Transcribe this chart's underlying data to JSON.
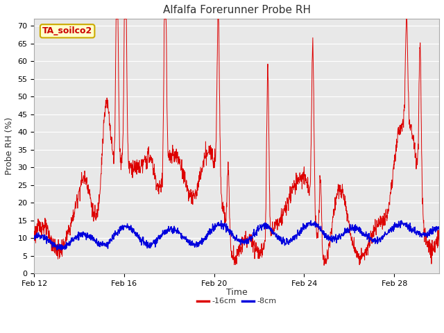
{
  "title": "Alfalfa Forerunner Probe RH",
  "ylabel": "Probe RH (%)",
  "xlabel": "Time",
  "ylim": [
    0,
    72
  ],
  "yticks": [
    0,
    5,
    10,
    15,
    20,
    25,
    30,
    35,
    40,
    45,
    50,
    55,
    60,
    65,
    70
  ],
  "legend_label": "TA_soilco2",
  "series": [
    {
      "label": "-16cm",
      "color": "#dd0000"
    },
    {
      "label": "-8cm",
      "color": "#0000dd"
    }
  ],
  "xtick_labels": [
    "Feb 12",
    "Feb 16",
    "Feb 20",
    "Feb 24",
    "Feb 28"
  ],
  "xtick_positions": [
    0,
    4,
    8,
    12,
    16
  ],
  "n_days": 18,
  "bg_color": "#ffffff",
  "plot_bg_color": "#e8e8e8",
  "grid_color": "#ffffff",
  "title_fontsize": 11,
  "axis_fontsize": 9,
  "tick_fontsize": 8,
  "legend_box_facecolor": "#ffffcc",
  "legend_box_edgecolor": "#ccaa00",
  "legend_text_color": "#cc0000",
  "legend_fontsize": 8
}
